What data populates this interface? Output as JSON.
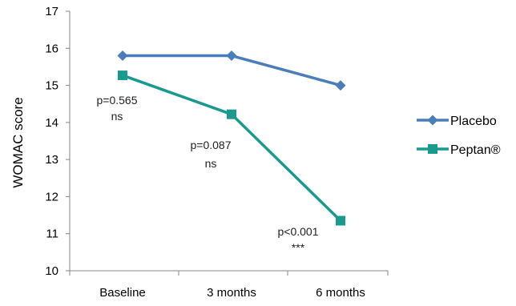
{
  "chart_data": {
    "type": "line",
    "categories": [
      "Baseline",
      "3 months",
      "6 months"
    ],
    "series": [
      {
        "name": "Placebo",
        "values": [
          15.8,
          15.8,
          15.0
        ],
        "color": "#4A7EBB",
        "marker": "diamond"
      },
      {
        "name": "Peptan®",
        "values": [
          15.27,
          14.22,
          11.35
        ],
        "color": "#1A9A8E",
        "marker": "square"
      }
    ],
    "ylabel": "WOMAC score",
    "xlabel": "",
    "ylim": [
      10,
      17
    ],
    "yticks": [
      "10",
      "11",
      "12",
      "13",
      "14",
      "15",
      "16",
      "17"
    ],
    "grid": false,
    "legend_position": "right",
    "annotations": [
      {
        "category": "Baseline",
        "line1": "p=0.565",
        "line2": "ns"
      },
      {
        "category": "3 months",
        "line1": "p=0.087",
        "line2": "ns"
      },
      {
        "category": "6 months",
        "line1": "p<0.001",
        "line2": "***"
      }
    ]
  }
}
